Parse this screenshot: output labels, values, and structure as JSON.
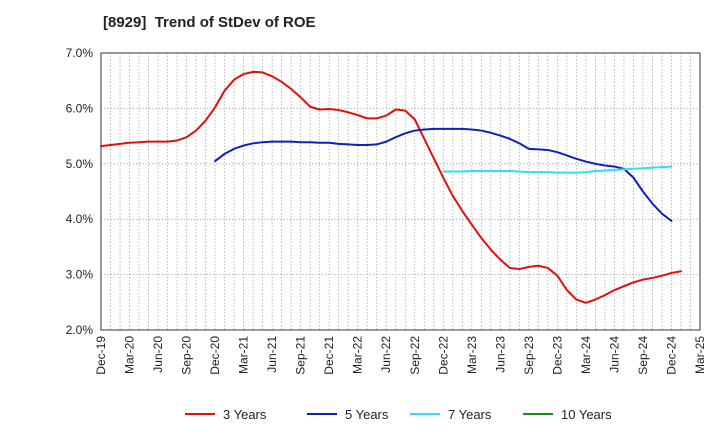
{
  "chart_data": {
    "type": "line",
    "title": "[8929]  Trend of StDev of ROE",
    "xlabel": "",
    "ylabel": "",
    "ylim": [
      2.0,
      7.0
    ],
    "y_ticks": [
      "2.0%",
      "3.0%",
      "4.0%",
      "5.0%",
      "6.0%",
      "7.0%"
    ],
    "y_tick_values": [
      2.0,
      3.0,
      4.0,
      5.0,
      6.0,
      7.0
    ],
    "x_tick_labels": [
      "Dec-19",
      "Mar-20",
      "Jun-20",
      "Sep-20",
      "Dec-20",
      "Mar-21",
      "Jun-21",
      "Sep-21",
      "Dec-21",
      "Mar-22",
      "Jun-22",
      "Sep-22",
      "Dec-22",
      "Mar-23",
      "Jun-23",
      "Sep-23",
      "Dec-23",
      "Mar-24",
      "Jun-24",
      "Sep-24",
      "Dec-24",
      "Mar-25"
    ],
    "grid": true,
    "legend_placement": "bottom",
    "series": [
      {
        "name": "3 Years",
        "color": "#e01010",
        "values": [
          [
            0,
            5.32
          ],
          [
            1,
            5.34
          ],
          [
            2,
            5.36
          ],
          [
            3,
            5.38
          ],
          [
            4,
            5.39
          ],
          [
            5,
            5.4
          ],
          [
            6,
            5.4
          ],
          [
            7,
            5.4
          ],
          [
            8,
            5.42
          ],
          [
            9,
            5.48
          ],
          [
            10,
            5.6
          ],
          [
            11,
            5.78
          ],
          [
            12,
            6.02
          ],
          [
            13,
            6.32
          ],
          [
            14,
            6.52
          ],
          [
            15,
            6.62
          ],
          [
            16,
            6.66
          ],
          [
            17,
            6.65
          ],
          [
            18,
            6.58
          ],
          [
            19,
            6.48
          ],
          [
            20,
            6.35
          ],
          [
            21,
            6.2
          ],
          [
            22,
            6.03
          ],
          [
            23,
            5.98
          ],
          [
            24,
            5.99
          ],
          [
            25,
            5.97
          ],
          [
            26,
            5.93
          ],
          [
            27,
            5.88
          ],
          [
            28,
            5.82
          ],
          [
            29,
            5.82
          ],
          [
            30,
            5.87
          ],
          [
            31,
            5.98
          ],
          [
            32,
            5.96
          ],
          [
            33,
            5.8
          ],
          [
            34,
            5.45
          ],
          [
            35,
            5.1
          ],
          [
            36,
            4.75
          ],
          [
            37,
            4.42
          ],
          [
            38,
            4.15
          ],
          [
            39,
            3.9
          ],
          [
            40,
            3.66
          ],
          [
            41,
            3.45
          ],
          [
            42,
            3.27
          ],
          [
            43,
            3.12
          ],
          [
            44,
            3.1
          ],
          [
            45,
            3.14
          ],
          [
            46,
            3.16
          ],
          [
            47,
            3.12
          ],
          [
            48,
            2.98
          ],
          [
            49,
            2.72
          ],
          [
            50,
            2.55
          ],
          [
            51,
            2.49
          ],
          [
            52,
            2.55
          ],
          [
            53,
            2.63
          ],
          [
            54,
            2.72
          ],
          [
            55,
            2.79
          ],
          [
            56,
            2.86
          ],
          [
            57,
            2.91
          ],
          [
            58,
            2.94
          ],
          [
            59,
            2.98
          ],
          [
            60,
            3.03
          ],
          [
            61,
            3.06
          ]
        ]
      },
      {
        "name": "5 Years",
        "color": "#1020c0",
        "values": [
          [
            12,
            5.05
          ],
          [
            13,
            5.18
          ],
          [
            14,
            5.27
          ],
          [
            15,
            5.33
          ],
          [
            16,
            5.37
          ],
          [
            17,
            5.39
          ],
          [
            18,
            5.4
          ],
          [
            19,
            5.4
          ],
          [
            20,
            5.4
          ],
          [
            21,
            5.39
          ],
          [
            22,
            5.39
          ],
          [
            23,
            5.38
          ],
          [
            24,
            5.38
          ],
          [
            25,
            5.36
          ],
          [
            26,
            5.35
          ],
          [
            27,
            5.34
          ],
          [
            28,
            5.34
          ],
          [
            29,
            5.35
          ],
          [
            30,
            5.4
          ],
          [
            31,
            5.48
          ],
          [
            32,
            5.55
          ],
          [
            33,
            5.6
          ],
          [
            34,
            5.62
          ],
          [
            35,
            5.63
          ],
          [
            36,
            5.63
          ],
          [
            37,
            5.63
          ],
          [
            38,
            5.63
          ],
          [
            39,
            5.62
          ],
          [
            40,
            5.6
          ],
          [
            41,
            5.56
          ],
          [
            42,
            5.51
          ],
          [
            43,
            5.45
          ],
          [
            44,
            5.37
          ],
          [
            45,
            5.27
          ],
          [
            46,
            5.26
          ],
          [
            47,
            5.25
          ],
          [
            48,
            5.21
          ],
          [
            49,
            5.15
          ],
          [
            50,
            5.09
          ],
          [
            51,
            5.04
          ],
          [
            52,
            5.0
          ],
          [
            53,
            4.97
          ],
          [
            54,
            4.95
          ],
          [
            55,
            4.91
          ],
          [
            56,
            4.75
          ],
          [
            57,
            4.5
          ],
          [
            58,
            4.28
          ],
          [
            59,
            4.1
          ],
          [
            60,
            3.97
          ]
        ]
      },
      {
        "name": "7 Years",
        "color": "#30e0e8",
        "values": [
          [
            36,
            4.86
          ],
          [
            37,
            4.86
          ],
          [
            38,
            4.86
          ],
          [
            39,
            4.87
          ],
          [
            40,
            4.87
          ],
          [
            41,
            4.87
          ],
          [
            42,
            4.87
          ],
          [
            43,
            4.87
          ],
          [
            44,
            4.86
          ],
          [
            45,
            4.85
          ],
          [
            46,
            4.85
          ],
          [
            47,
            4.85
          ],
          [
            48,
            4.84
          ],
          [
            49,
            4.84
          ],
          [
            50,
            4.84
          ],
          [
            51,
            4.85
          ],
          [
            52,
            4.87
          ],
          [
            53,
            4.88
          ],
          [
            54,
            4.89
          ],
          [
            55,
            4.9
          ],
          [
            56,
            4.91
          ],
          [
            57,
            4.92
          ],
          [
            58,
            4.93
          ],
          [
            59,
            4.94
          ],
          [
            60,
            4.95
          ]
        ]
      },
      {
        "name": "10 Years",
        "color": "#1a8a1a",
        "values": []
      }
    ]
  }
}
